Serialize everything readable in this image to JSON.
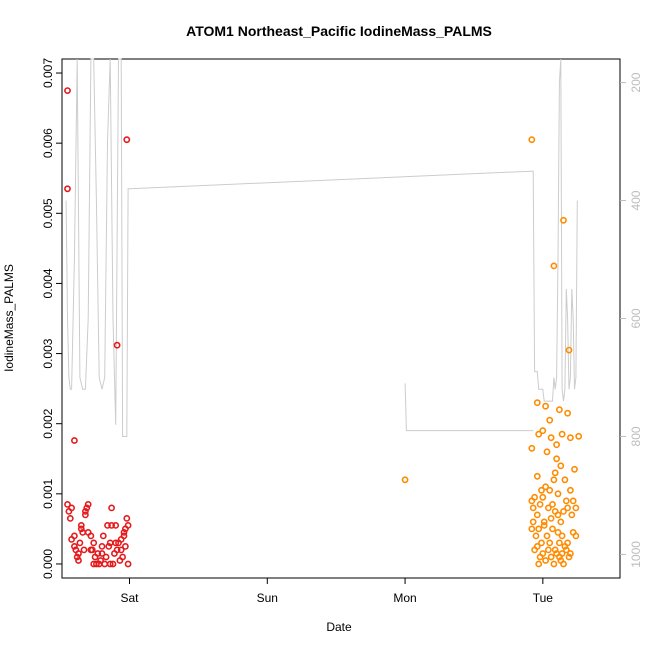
{
  "chart_data": {
    "type": "scatter",
    "title": "ATOM1 Northeast_Pacific IodineMass_PALMS",
    "xlabel": "Date",
    "ylabel": "IodineMass_PALMS",
    "x_ticks": [
      {
        "label": "Sat",
        "day": 1
      },
      {
        "label": "Sun",
        "day": 2
      },
      {
        "label": "Mon",
        "day": 3
      },
      {
        "label": "Tue",
        "day": 4
      }
    ],
    "xlim_days": [
      0.51,
      4.56
    ],
    "ylim": [
      -0.0002,
      0.0072
    ],
    "y_ticks": [
      0.0,
      0.001,
      0.002,
      0.003,
      0.004,
      0.005,
      0.006,
      0.007
    ],
    "y_tick_labels": [
      "0.000",
      "0.001",
      "0.002",
      "0.003",
      "0.004",
      "0.005",
      "0.006",
      "0.007"
    ],
    "secondary_axis": {
      "side": "right",
      "color": "#bdbdbd",
      "reversed": true,
      "range": [
        160,
        1040
      ],
      "ticks": [
        200,
        400,
        600,
        800,
        1000
      ]
    },
    "grid": false,
    "series": [
      {
        "color": "#e41a1c",
        "marker": "circle-open",
        "points": [
          [
            0.55,
            0.00675
          ],
          [
            0.55,
            0.00535
          ],
          [
            0.6,
            0.00176
          ],
          [
            0.91,
            0.00312
          ],
          [
            0.98,
            0.00605
          ],
          [
            0.55,
            0.00085
          ],
          [
            0.56,
            0.00075
          ],
          [
            0.57,
            0.00065
          ],
          [
            0.58,
            0.0008
          ],
          [
            0.6,
            0.0004
          ],
          [
            0.6,
            0.00025
          ],
          [
            0.61,
            0.0002
          ],
          [
            0.62,
            0.0001
          ],
          [
            0.63,
            5e-05
          ],
          [
            0.64,
            0.0003
          ],
          [
            0.65,
            0.00055
          ],
          [
            0.65,
            0.0005
          ],
          [
            0.66,
            0.00045
          ],
          [
            0.67,
            0.0002
          ],
          [
            0.68,
            0.00075
          ],
          [
            0.68,
            0.0007
          ],
          [
            0.69,
            0.0008
          ],
          [
            0.7,
            0.00085
          ],
          [
            0.7,
            0.00045
          ],
          [
            0.72,
            0.0002
          ],
          [
            0.72,
            0.0004
          ],
          [
            0.73,
            0.0002
          ],
          [
            0.74,
            0.0003
          ],
          [
            0.75,
            0.0001
          ],
          [
            0.76,
            0.0
          ],
          [
            0.77,
            0.00015
          ],
          [
            0.78,
            0.0
          ],
          [
            0.79,
            5e-05
          ],
          [
            0.8,
            0.00025
          ],
          [
            0.81,
            0.0004
          ],
          [
            0.82,
            0.0
          ],
          [
            0.83,
            0.0001
          ],
          [
            0.84,
            0.00055
          ],
          [
            0.85,
            0.00025
          ],
          [
            0.86,
            0.0003
          ],
          [
            0.87,
            0.00055
          ],
          [
            0.87,
            0.0008
          ],
          [
            0.88,
            0.0
          ],
          [
            0.89,
            0.00015
          ],
          [
            0.9,
            0.0003
          ],
          [
            0.9,
            0.00055
          ],
          [
            0.91,
            0.0002
          ],
          [
            0.92,
            0.0003
          ],
          [
            0.93,
            5e-05
          ],
          [
            0.94,
            0.00035
          ],
          [
            0.94,
            0.0002
          ],
          [
            0.95,
            0.0001
          ],
          [
            0.96,
            0.0004
          ],
          [
            0.96,
            0.00045
          ],
          [
            0.97,
            0.0005
          ],
          [
            0.97,
            0.00025
          ],
          [
            0.98,
            0.00065
          ],
          [
            0.99,
            0.0
          ],
          [
            0.99,
            0.00055
          ],
          [
            0.58,
            0.00035
          ],
          [
            0.63,
            0.00015
          ],
          [
            0.74,
            0.0
          ],
          [
            0.8,
            0.00015
          ],
          [
            0.86,
            0.0
          ]
        ]
      },
      {
        "color": "#ff8c00",
        "marker": "circle-open",
        "points": [
          [
            3.0,
            0.0012
          ],
          [
            3.92,
            0.00605
          ],
          [
            4.08,
            0.00425
          ],
          [
            4.15,
            0.0049
          ],
          [
            4.19,
            0.00305
          ],
          [
            4.26,
            0.00182
          ],
          [
            4.18,
            0.00215
          ],
          [
            4.12,
            0.0022
          ],
          [
            3.96,
            0.0023
          ],
          [
            4.02,
            0.00225
          ],
          [
            3.92,
            0.00165
          ],
          [
            3.97,
            0.00185
          ],
          [
            4.0,
            0.0019
          ],
          [
            4.03,
            0.0016
          ],
          [
            4.05,
            0.00205
          ],
          [
            4.06,
            0.0018
          ],
          [
            4.1,
            0.0017
          ],
          [
            4.14,
            0.00185
          ],
          [
            4.2,
            0.0018
          ],
          [
            4.1,
            0.0015
          ],
          [
            4.08,
            0.0012
          ],
          [
            4.13,
            0.0014
          ],
          [
            4.16,
            0.0012
          ],
          [
            4.23,
            0.00135
          ],
          [
            3.96,
            0.00125
          ],
          [
            3.99,
            0.00105
          ],
          [
            4.02,
            0.0011
          ],
          [
            4.05,
            0.00105
          ],
          [
            4.09,
            0.0013
          ],
          [
            4.11,
            0.001
          ],
          [
            4.17,
            0.0009
          ],
          [
            4.2,
            0.00105
          ],
          [
            4.22,
            0.0009
          ],
          [
            4.24,
            0.0008
          ],
          [
            3.92,
            0.0009
          ],
          [
            3.93,
            0.0008
          ],
          [
            3.94,
            0.00095
          ],
          [
            3.96,
            0.0007
          ],
          [
            3.98,
            0.00085
          ],
          [
            4.0,
            0.00095
          ],
          [
            4.01,
            0.0006
          ],
          [
            4.04,
            0.0008
          ],
          [
            4.06,
            0.00065
          ],
          [
            4.07,
            0.00085
          ],
          [
            4.09,
            0.00075
          ],
          [
            4.11,
            0.0007
          ],
          [
            4.13,
            0.0006
          ],
          [
            4.15,
            0.00075
          ],
          [
            4.18,
            0.0008
          ],
          [
            4.21,
            0.0007
          ],
          [
            3.92,
            0.0005
          ],
          [
            3.93,
            0.0006
          ],
          [
            3.95,
            0.0004
          ],
          [
            3.97,
            0.0005
          ],
          [
            3.99,
            0.0003
          ],
          [
            4.01,
            0.00055
          ],
          [
            4.03,
            0.0004
          ],
          [
            4.05,
            0.0003
          ],
          [
            4.07,
            0.0005
          ],
          [
            4.09,
            0.0002
          ],
          [
            4.11,
            0.00045
          ],
          [
            4.12,
            0.0003
          ],
          [
            4.14,
            0.0004
          ],
          [
            4.16,
            0.00025
          ],
          [
            4.18,
            0.0003
          ],
          [
            4.22,
            0.00045
          ],
          [
            4.24,
            0.0004
          ],
          [
            3.94,
            0.0002
          ],
          [
            3.96,
            0.00025
          ],
          [
            3.98,
            0.0001
          ],
          [
            4.0,
            0.00015
          ],
          [
            4.02,
            5e-05
          ],
          [
            4.04,
            0.0002
          ],
          [
            4.06,
            0.0001
          ],
          [
            4.08,
            0.0
          ],
          [
            4.1,
            0.00015
          ],
          [
            4.12,
            0.0001
          ],
          [
            4.13,
            5e-05
          ],
          [
            4.15,
            0.0
          ],
          [
            4.17,
            0.0002
          ],
          [
            4.19,
            0.0001
          ],
          [
            4.2,
            0.00015
          ],
          [
            3.97,
            0.0
          ],
          [
            4.14,
            0.00015
          ]
        ]
      }
    ],
    "secondary_line": {
      "color": "#cccccc",
      "points": [
        [
          0.54,
          400
        ],
        [
          0.55,
          600
        ],
        [
          0.56,
          700
        ],
        [
          0.57,
          720
        ],
        [
          0.58,
          720
        ],
        [
          0.6,
          500
        ],
        [
          0.62,
          160
        ],
        [
          0.64,
          700
        ],
        [
          0.66,
          720
        ],
        [
          0.68,
          720
        ],
        [
          0.7,
          600
        ],
        [
          0.72,
          160
        ],
        [
          0.74,
          160
        ],
        [
          0.76,
          400
        ],
        [
          0.78,
          700
        ],
        [
          0.8,
          720
        ],
        [
          0.82,
          700
        ],
        [
          0.84,
          300
        ],
        [
          0.86,
          160
        ],
        [
          0.88,
          600
        ],
        [
          0.9,
          780
        ],
        [
          0.92,
          160
        ],
        [
          0.94,
          160
        ],
        [
          0.95,
          800
        ],
        [
          0.97,
          800
        ],
        [
          0.98,
          800
        ],
        [
          0.99,
          380
        ],
        [
          1.0,
          380
        ],
        [
          3.93,
          350
        ],
        [
          3.94,
          690
        ],
        [
          3.96,
          690
        ],
        [
          3.97,
          720
        ],
        [
          3.98,
          720
        ],
        [
          4.0,
          720
        ],
        [
          4.01,
          740
        ],
        [
          4.03,
          740
        ],
        [
          4.05,
          740
        ],
        [
          4.07,
          740
        ],
        [
          4.08,
          700
        ],
        [
          4.09,
          720
        ],
        [
          4.1,
          700
        ],
        [
          4.11,
          500
        ],
        [
          4.12,
          200
        ],
        [
          4.13,
          160
        ],
        [
          4.14,
          720
        ],
        [
          4.15,
          740
        ],
        [
          4.16,
          720
        ],
        [
          4.17,
          550
        ],
        [
          4.18,
          600
        ],
        [
          4.19,
          720
        ],
        [
          4.2,
          700
        ],
        [
          4.21,
          550
        ],
        [
          4.22,
          600
        ],
        [
          4.23,
          720
        ],
        [
          4.24,
          700
        ],
        [
          4.25,
          400
        ]
      ],
      "segment": [
        [
          3.0,
          710
        ],
        [
          3.01,
          790
        ],
        [
          3.93,
          790
        ]
      ]
    }
  }
}
